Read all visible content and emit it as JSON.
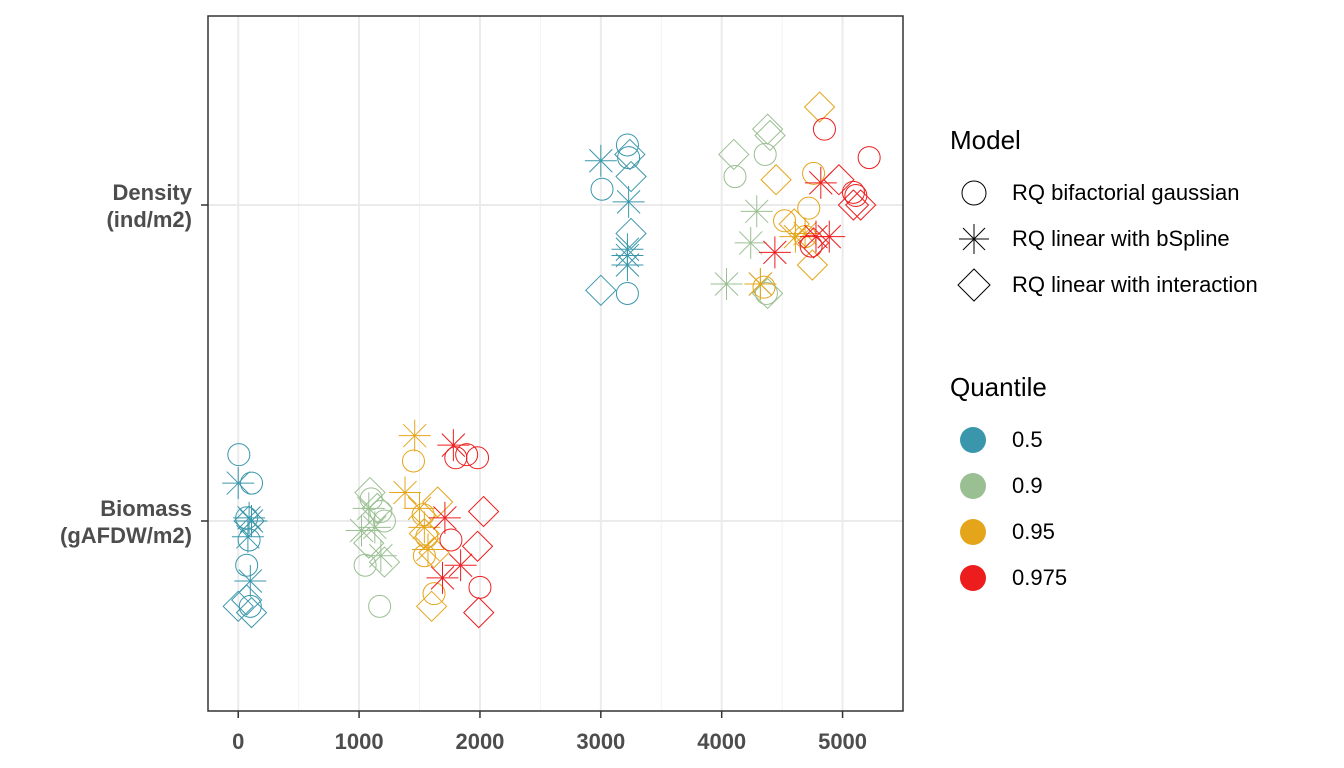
{
  "chart_data": {
    "type": "scatter",
    "x_ticks": [
      "0",
      "1000",
      "2000",
      "3000",
      "4000",
      "5000"
    ],
    "x_tick_values": [
      0,
      1000,
      2000,
      3000,
      4000,
      5000
    ],
    "xlim": [
      -250,
      5500
    ],
    "y_categories": [
      {
        "label_line1": "Biomass",
        "label_line2": "(gAFDW/m2)"
      },
      {
        "label_line1": "Density",
        "label_line2": "(ind/m2)"
      }
    ],
    "grid": true,
    "legend_placement": "right",
    "shape_legend": {
      "title": "Model",
      "items": [
        {
          "label": "RQ bifactorial gaussian",
          "shape": "circle"
        },
        {
          "label": "RQ linear with bSpline",
          "shape": "asterisk"
        },
        {
          "label": "RQ linear with interaction",
          "shape": "diamond"
        }
      ]
    },
    "color_legend": {
      "title": "Quantile",
      "items": [
        {
          "label": "0.5",
          "color": "#3A97AB"
        },
        {
          "label": "0.9",
          "color": "#9ABF92"
        },
        {
          "label": "0.95",
          "color": "#E5A51B"
        },
        {
          "label": "0.975",
          "color": "#EE1D1D"
        }
      ]
    },
    "series": [
      {
        "category": "Biomass",
        "quantile": "0.5",
        "model": "RQ bifactorial gaussian",
        "x": [
          5,
          110,
          70,
          90,
          70,
          100
        ],
        "jitter": [
          0.21,
          0.12,
          0.01,
          -0.06,
          -0.14,
          -0.27
        ]
      },
      {
        "category": "Biomass",
        "quantile": "0.5",
        "model": "RQ linear with bSpline",
        "x": [
          0,
          90,
          110,
          80,
          100
        ],
        "jitter": [
          0.12,
          0.01,
          0.0,
          -0.05,
          -0.19
        ]
      },
      {
        "category": "Biomass",
        "quantile": "0.5",
        "model": "RQ linear with interaction",
        "x": [
          0,
          70,
          110,
          90
        ],
        "jitter": [
          -0.27,
          -0.25,
          -0.29,
          0.0
        ]
      },
      {
        "category": "Biomass",
        "quantile": "0.9",
        "model": "RQ bifactorial gaussian",
        "x": [
          1100,
          1180,
          1210,
          1050,
          1170
        ],
        "jitter": [
          0.07,
          0.03,
          0.0,
          -0.14,
          -0.27
        ]
      },
      {
        "category": "Biomass",
        "quantile": "0.9",
        "model": "RQ linear with bSpline",
        "x": [
          1080,
          1130,
          1020,
          1180
        ],
        "jitter": [
          0.04,
          -0.02,
          -0.03,
          -0.11
        ]
      },
      {
        "category": "Biomass",
        "quantile": "0.9",
        "model": "RQ linear with interaction",
        "x": [
          1090,
          1150,
          1080,
          1210
        ],
        "jitter": [
          0.09,
          0.04,
          -0.07,
          -0.13
        ]
      },
      {
        "category": "Biomass",
        "quantile": "0.95",
        "model": "RQ bifactorial gaussian",
        "x": [
          1450,
          1530,
          1560,
          1540,
          1620
        ],
        "jitter": [
          0.19,
          0.02,
          -0.05,
          -0.11,
          -0.23
        ]
      },
      {
        "category": "Biomass",
        "quantile": "0.95",
        "model": "RQ linear with bSpline",
        "x": [
          1460,
          1380,
          1500,
          1540,
          1570
        ],
        "jitter": [
          0.27,
          0.09,
          0.04,
          -0.02,
          -0.09
        ]
      },
      {
        "category": "Biomass",
        "quantile": "0.95",
        "model": "RQ linear with interaction",
        "x": [
          1650,
          1540,
          1620,
          1600
        ],
        "jitter": [
          0.06,
          -0.04,
          -0.1,
          -0.27
        ]
      },
      {
        "category": "Biomass",
        "quantile": "0.975",
        "model": "RQ bifactorial gaussian",
        "x": [
          1800,
          1980,
          1760,
          2000,
          1890
        ],
        "jitter": [
          0.2,
          0.2,
          -0.06,
          -0.21,
          0.21
        ]
      },
      {
        "category": "Biomass",
        "quantile": "0.975",
        "model": "RQ linear with bSpline",
        "x": [
          1780,
          1710,
          1840,
          1690
        ],
        "jitter": [
          0.24,
          0.01,
          -0.14,
          -0.18
        ]
      },
      {
        "category": "Biomass",
        "quantile": "0.975",
        "model": "RQ linear with interaction",
        "x": [
          2030,
          1980,
          1990
        ],
        "jitter": [
          0.03,
          -0.08,
          -0.29
        ]
      },
      {
        "category": "Density",
        "quantile": "0.5",
        "model": "RQ bifactorial gaussian",
        "x": [
          3220,
          3230,
          3010,
          3220
        ],
        "jitter": [
          0.19,
          0.15,
          0.05,
          -0.28
        ]
      },
      {
        "category": "Density",
        "quantile": "0.5",
        "model": "RQ linear with bSpline",
        "x": [
          3000,
          3230,
          3220,
          3220,
          3220
        ],
        "jitter": [
          0.14,
          0.01,
          -0.14,
          -0.16,
          -0.19
        ]
      },
      {
        "category": "Density",
        "quantile": "0.5",
        "model": "RQ linear with interaction",
        "x": [
          3240,
          3250,
          3250,
          3000
        ],
        "jitter": [
          0.16,
          0.09,
          -0.09,
          -0.27
        ]
      },
      {
        "category": "Density",
        "quantile": "0.9",
        "model": "RQ bifactorial gaussian",
        "x": [
          4360,
          4110,
          4370
        ],
        "jitter": [
          0.16,
          0.09,
          -0.28
        ]
      },
      {
        "category": "Density",
        "quantile": "0.9",
        "model": "RQ linear with bSpline",
        "x": [
          4290,
          4240,
          4040,
          4320
        ],
        "jitter": [
          -0.02,
          -0.12,
          -0.25,
          -0.25
        ]
      },
      {
        "category": "Density",
        "quantile": "0.9",
        "model": "RQ linear with interaction",
        "x": [
          4380,
          4400,
          4100,
          4380
        ],
        "jitter": [
          0.24,
          0.22,
          0.16,
          -0.28
        ]
      },
      {
        "category": "Density",
        "quantile": "0.95",
        "model": "RQ bifactorial gaussian",
        "x": [
          4520,
          4760,
          4720,
          4690,
          4350
        ],
        "jitter": [
          -0.05,
          0.1,
          -0.01,
          -0.1,
          -0.26
        ]
      },
      {
        "category": "Density",
        "quantile": "0.95",
        "model": "RQ linear with bSpline",
        "x": [
          4610,
          4690,
          4320
        ],
        "jitter": [
          -0.1,
          -0.09,
          -0.25
        ]
      },
      {
        "category": "Density",
        "quantile": "0.95",
        "model": "RQ linear with interaction",
        "x": [
          4810,
          4450,
          4600,
          4750
        ],
        "jitter": [
          0.31,
          0.08,
          -0.06,
          -0.19
        ]
      },
      {
        "category": "Density",
        "quantile": "0.975",
        "model": "RQ bifactorial gaussian",
        "x": [
          4850,
          5220,
          5090,
          5110,
          4740
        ],
        "jitter": [
          0.24,
          0.15,
          0.04,
          0.03,
          -0.13
        ]
      },
      {
        "category": "Density",
        "quantile": "0.975",
        "model": "RQ linear with bSpline",
        "x": [
          4820,
          4780,
          4890,
          4440
        ],
        "jitter": [
          0.07,
          -0.1,
          -0.1,
          -0.15
        ]
      },
      {
        "category": "Density",
        "quantile": "0.975",
        "model": "RQ linear with interaction",
        "x": [
          4970,
          5090,
          5150,
          4760
        ],
        "jitter": [
          0.08,
          0.0,
          0.0,
          -0.12
        ]
      }
    ]
  }
}
